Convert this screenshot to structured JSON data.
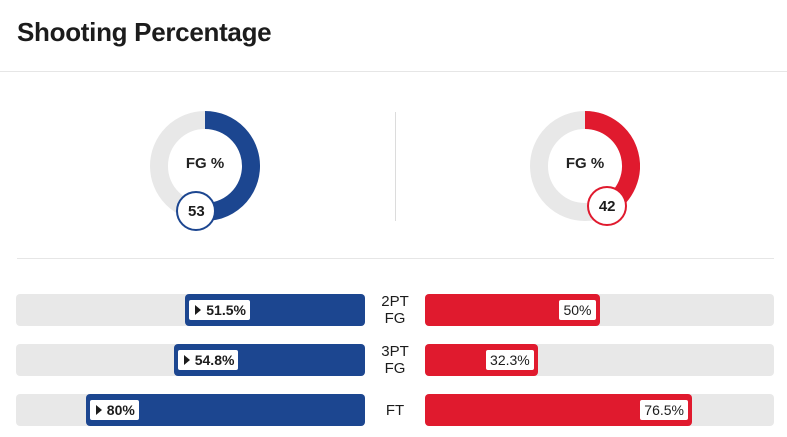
{
  "header": {
    "title": "Shooting Percentage"
  },
  "colors": {
    "home": "#1c4690",
    "away": "#e01a2e",
    "track": "#e8e8e8"
  },
  "chart_data": [
    {
      "type": "pie",
      "subtype": "donut",
      "center_label": "FG %",
      "teams": [
        {
          "side": "home",
          "value": 53,
          "label": "53",
          "color": "#1c4690"
        },
        {
          "side": "away",
          "value": 42,
          "label": "42",
          "color": "#e01a2e"
        }
      ]
    },
    {
      "type": "bar",
      "orientation": "horizontal-diverging",
      "range": [
        0,
        100
      ],
      "rows": [
        {
          "label": "2PT FG",
          "label_lines": [
            "2PT",
            "FG"
          ],
          "home": 51.5,
          "home_label": "51.5%",
          "away": 50,
          "away_label": "50%",
          "leader": "home"
        },
        {
          "label": "3PT FG",
          "label_lines": [
            "3PT",
            "FG"
          ],
          "home": 54.8,
          "home_label": "54.8%",
          "away": 32.3,
          "away_label": "32.3%",
          "leader": "home"
        },
        {
          "label": "FT",
          "label_lines": [
            "FT"
          ],
          "home": 80,
          "home_label": "80%",
          "away": 76.5,
          "away_label": "76.5%",
          "leader": "home"
        }
      ]
    }
  ]
}
